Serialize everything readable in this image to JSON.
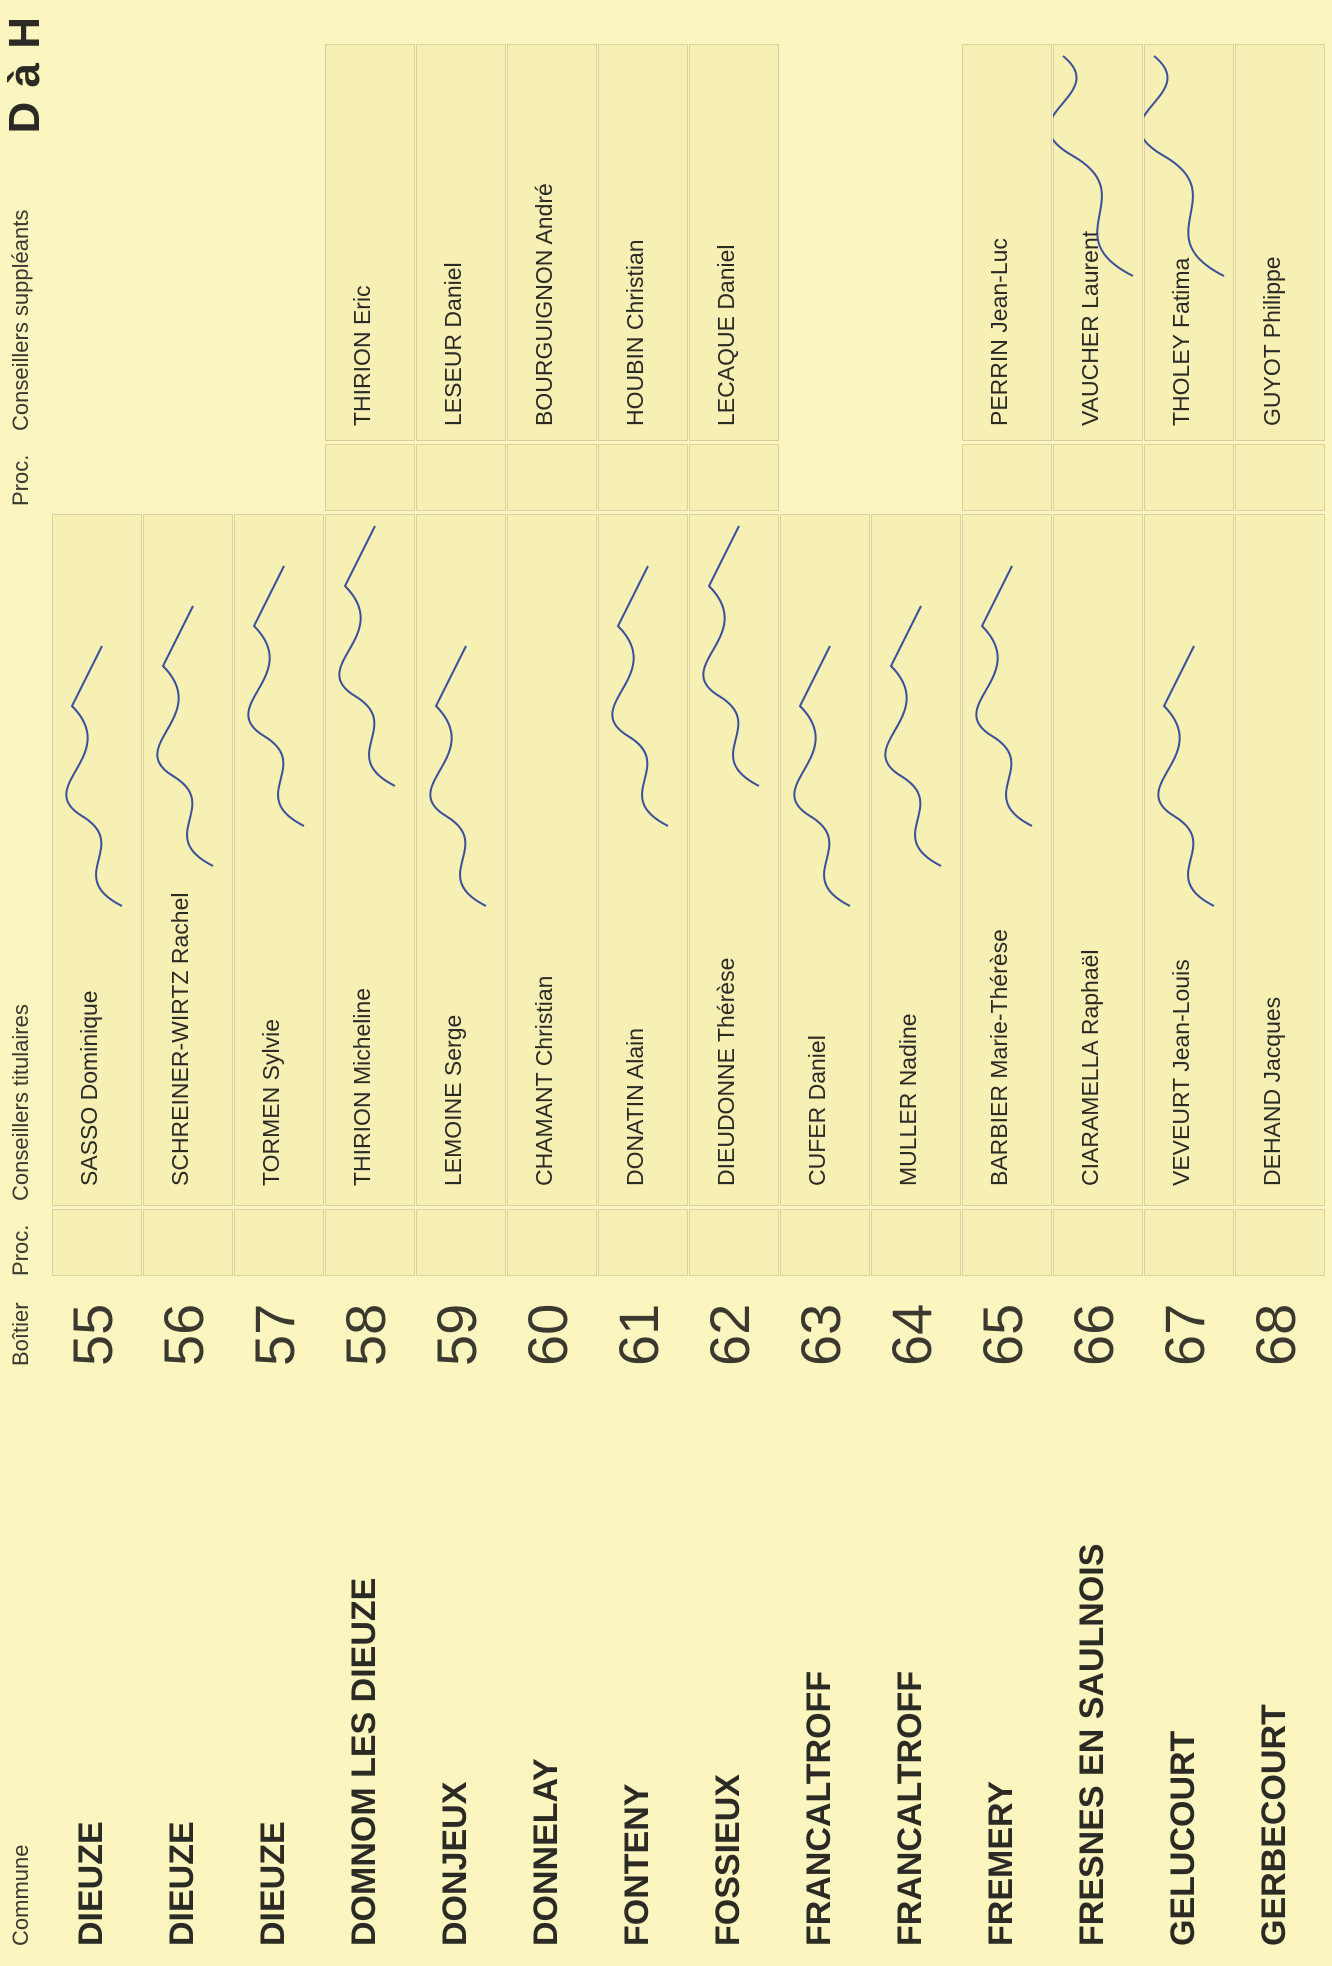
{
  "page": {
    "title": "D à H"
  },
  "headers": {
    "commune": "Commune",
    "boitier": "Boîtier",
    "proc1": "Proc.",
    "titulaires": "Conseillers titulaires",
    "proc2": "Proc.",
    "suppleants": "Conseillers suppléants"
  },
  "rows": [
    {
      "commune": "DIEUZE",
      "boitier": "55",
      "titulaire": "SASSO Dominique",
      "suppleant": "",
      "signed_titulaire": true,
      "signed_suppleant": false,
      "proc2_box": false
    },
    {
      "commune": "DIEUZE",
      "boitier": "56",
      "titulaire": "SCHREINER-WIRTZ Rachel",
      "suppleant": "",
      "signed_titulaire": true,
      "signed_suppleant": false,
      "proc2_box": false
    },
    {
      "commune": "DIEUZE",
      "boitier": "57",
      "titulaire": "TORMEN Sylvie",
      "suppleant": "",
      "signed_titulaire": true,
      "signed_suppleant": false,
      "proc2_box": false
    },
    {
      "commune": "DOMNOM LES DIEUZE",
      "boitier": "58",
      "titulaire": "THIRION Micheline",
      "suppleant": "THIRION Eric",
      "signed_titulaire": true,
      "signed_suppleant": false,
      "proc2_box": true
    },
    {
      "commune": "DONJEUX",
      "boitier": "59",
      "titulaire": "LEMOINE Serge",
      "suppleant": "LESEUR Daniel",
      "signed_titulaire": true,
      "signed_suppleant": false,
      "proc2_box": true
    },
    {
      "commune": "DONNELAY",
      "boitier": "60",
      "titulaire": "CHAMANT Christian",
      "suppleant": "BOURGUIGNON André",
      "signed_titulaire": false,
      "signed_suppleant": false,
      "proc2_box": true
    },
    {
      "commune": "FONTENY",
      "boitier": "61",
      "titulaire": "DONATIN Alain",
      "suppleant": "HOUBIN Christian",
      "signed_titulaire": true,
      "signed_suppleant": false,
      "proc2_box": true
    },
    {
      "commune": "FOSSIEUX",
      "boitier": "62",
      "titulaire": "DIEUDONNE Thérèse",
      "suppleant": "LECAQUE Daniel",
      "signed_titulaire": true,
      "signed_suppleant": false,
      "proc2_box": true
    },
    {
      "commune": "FRANCALTROFF",
      "boitier": "63",
      "titulaire": "CUFER Daniel",
      "suppleant": "",
      "signed_titulaire": true,
      "signed_suppleant": false,
      "proc2_box": false
    },
    {
      "commune": "FRANCALTROFF",
      "boitier": "64",
      "titulaire": "MULLER Nadine",
      "suppleant": "",
      "signed_titulaire": true,
      "signed_suppleant": false,
      "proc2_box": false
    },
    {
      "commune": "FREMERY",
      "boitier": "65",
      "titulaire": "BARBIER Marie-Thérèse",
      "suppleant": "PERRIN Jean-Luc",
      "signed_titulaire": true,
      "signed_suppleant": false,
      "proc2_box": true
    },
    {
      "commune": "FRESNES EN SAULNOIS",
      "boitier": "66",
      "titulaire": "CIARAMELLA Raphaël",
      "suppleant": "VAUCHER Laurent",
      "signed_titulaire": false,
      "signed_suppleant": true,
      "proc2_box": true
    },
    {
      "commune": "GELUCOURT",
      "boitier": "67",
      "titulaire": "VEVEURT Jean-Louis",
      "suppleant": "THOLEY Fatima",
      "signed_titulaire": true,
      "signed_suppleant": true,
      "proc2_box": true
    },
    {
      "commune": "GERBECOURT",
      "boitier": "68",
      "titulaire": "DEHAND Jacques",
      "suppleant": "GUYOT Philippe",
      "signed_titulaire": false,
      "signed_suppleant": false,
      "proc2_box": true
    }
  ]
}
